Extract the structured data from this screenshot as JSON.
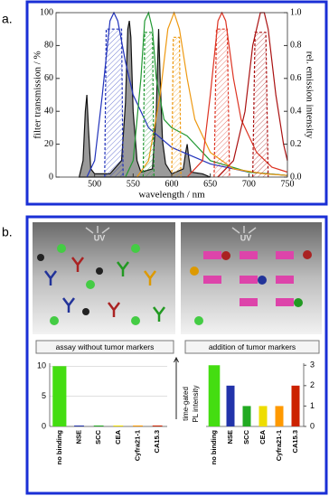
{
  "panel_labels": [
    "a.",
    "b."
  ],
  "scenes": [
    {
      "label": "UV",
      "caption": "assay without tumor markers"
    },
    {
      "label": "UV",
      "caption": "addition of tumor markers"
    }
  ],
  "chart_data": [
    {
      "type": "line",
      "xlabel": "wavelength  /  nm",
      "ylabel": "filter transmission  /  %",
      "y2label": "rel. emission intensity",
      "xlim": [
        450,
        750
      ],
      "xticks": [
        500,
        550,
        600,
        650,
        700,
        750
      ],
      "ylim": [
        0,
        100
      ],
      "yticks": [
        0,
        20,
        40,
        60,
        80,
        100
      ],
      "y2lim": [
        0,
        1
      ],
      "y2ticks": [
        {
          "value": 0,
          "label": "0.0"
        },
        0.2,
        0.4,
        0.6,
        0.8,
        {
          "value": 1,
          "label": "1.0"
        }
      ],
      "series": [
        {
          "color": "#111111",
          "fill": "#9a9a9a",
          "axis": "y2",
          "x": [
            480,
            485,
            488,
            490,
            492,
            495,
            500,
            520,
            535,
            540,
            543,
            545,
            547,
            550,
            555,
            560,
            575,
            580,
            583,
            585,
            588,
            592,
            600,
            615,
            618,
            620,
            622,
            625,
            640,
            650
          ],
          "values": [
            0,
            0.1,
            0.4,
            0.5,
            0.3,
            0.05,
            0.02,
            0.02,
            0.1,
            0.45,
            0.9,
            0.95,
            0.85,
            0.4,
            0.1,
            0.03,
            0.05,
            0.4,
            0.9,
            0.6,
            0.22,
            0.08,
            0.02,
            0.05,
            0.15,
            0.2,
            0.12,
            0.03,
            0.02,
            0
          ]
        },
        {
          "color": "#2233bb",
          "axis": "y2",
          "x": [
            490,
            500,
            510,
            520,
            525,
            530,
            540,
            550,
            570,
            600,
            650,
            700,
            750
          ],
          "values": [
            0,
            0.1,
            0.5,
            0.95,
            1.0,
            0.95,
            0.7,
            0.5,
            0.3,
            0.18,
            0.08,
            0.03,
            0.01
          ]
        },
        {
          "color": "#229933",
          "axis": "y2",
          "x": [
            540,
            550,
            560,
            565,
            570,
            575,
            580,
            590,
            600,
            620,
            650,
            700,
            750
          ],
          "values": [
            0,
            0.1,
            0.6,
            0.95,
            1.0,
            0.9,
            0.6,
            0.35,
            0.3,
            0.25,
            0.1,
            0.03,
            0.01
          ]
        },
        {
          "color": "#ee9911",
          "axis": "y2",
          "x": [
            555,
            570,
            585,
            595,
            603,
            610,
            620,
            630,
            650,
            680,
            720,
            750
          ],
          "values": [
            0,
            0.1,
            0.5,
            0.9,
            1.0,
            0.9,
            0.6,
            0.35,
            0.15,
            0.05,
            0.02,
            0.01
          ]
        },
        {
          "color": "#dd3322",
          "axis": "y2",
          "x": [
            620,
            640,
            650,
            660,
            665,
            670,
            680,
            690,
            710,
            730,
            750
          ],
          "values": [
            0,
            0.1,
            0.5,
            0.95,
            1.0,
            0.95,
            0.6,
            0.35,
            0.15,
            0.06,
            0.03
          ]
        },
        {
          "color": "#aa1111",
          "axis": "y2",
          "x": [
            660,
            680,
            695,
            705,
            715,
            720,
            725,
            735,
            745,
            750
          ],
          "values": [
            0,
            0.1,
            0.4,
            0.8,
            1.0,
            1.0,
            0.9,
            0.5,
            0.2,
            0.1
          ]
        },
        {
          "color": "#2233bb",
          "hatch": true,
          "x": [
            513,
            515,
            535,
            537
          ],
          "values": [
            0,
            90,
            90,
            0
          ]
        },
        {
          "color": "#229933",
          "hatch": true,
          "x": [
            563,
            565,
            575,
            577
          ],
          "values": [
            0,
            88,
            88,
            0
          ]
        },
        {
          "color": "#ee9911",
          "hatch": true,
          "x": [
            600,
            602,
            610,
            612
          ],
          "values": [
            0,
            85,
            85,
            0
          ]
        },
        {
          "color": "#dd3322",
          "hatch": true,
          "x": [
            655,
            658,
            672,
            675
          ],
          "values": [
            0,
            90,
            90,
            0
          ]
        },
        {
          "color": "#aa1111",
          "hatch": true,
          "x": [
            705,
            708,
            722,
            725
          ],
          "values": [
            0,
            88,
            88,
            0
          ]
        }
      ]
    },
    {
      "type": "bar",
      "categories": [
        "no binding",
        "NSE",
        "SCC",
        "CEA",
        "Cyfra21-1",
        "CA15.3"
      ],
      "values": [
        10,
        0.15,
        0.15,
        0.15,
        0.15,
        0.15
      ],
      "colors": [
        "#44dd11",
        "#2233aa",
        "#22aa22",
        "#eedd00",
        "#ff9900",
        "#cc2200"
      ],
      "ylim": [
        0,
        10.5
      ],
      "yticks": [
        0,
        5,
        10
      ],
      "grid": true,
      "yaxis_side": "left"
    },
    {
      "type": "bar",
      "ylabel": [
        "time-gated",
        "PL intensity"
      ],
      "categories": [
        "no binding",
        "NSE",
        "SCC",
        "CEA",
        "Cyfra21-1",
        "CA15.3"
      ],
      "values": [
        3,
        2,
        1,
        1,
        1,
        2
      ],
      "colors": [
        "#44dd11",
        "#2233aa",
        "#22aa22",
        "#eedd00",
        "#ff9900",
        "#cc2200"
      ],
      "ylim": [
        0,
        3.1
      ],
      "yticks": [
        0,
        1,
        2,
        3
      ],
      "grid": false,
      "yaxis_side": "right"
    }
  ]
}
